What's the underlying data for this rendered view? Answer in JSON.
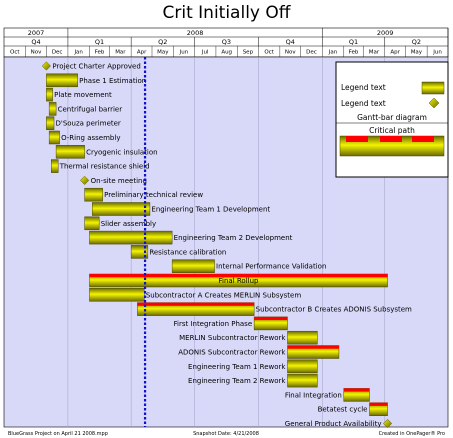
{
  "title": "Crit Initially Off",
  "chart_data": {
    "type": "gantt",
    "title": "Crit Initially Off",
    "timeline": {
      "start": "2007-10-01",
      "end": "2009-07-01",
      "years": [
        {
          "label": "2007",
          "start": "2007-10-01",
          "end": "2008-01-01"
        },
        {
          "label": "2008",
          "start": "2008-01-01",
          "end": "2009-01-01"
        },
        {
          "label": "2009",
          "start": "2009-01-01",
          "end": "2009-07-01"
        }
      ],
      "quarters": [
        {
          "label": "Q4",
          "start": "2007-10-01",
          "end": "2008-01-01"
        },
        {
          "label": "Q1",
          "start": "2008-01-01",
          "end": "2008-04-01"
        },
        {
          "label": "Q2",
          "start": "2008-04-01",
          "end": "2008-07-01"
        },
        {
          "label": "Q3",
          "start": "2008-07-01",
          "end": "2008-10-01"
        },
        {
          "label": "Q4",
          "start": "2008-10-01",
          "end": "2009-01-01"
        },
        {
          "label": "Q1",
          "start": "2009-01-01",
          "end": "2009-04-01"
        },
        {
          "label": "Q2",
          "start": "2009-04-01",
          "end": "2009-07-01"
        }
      ],
      "months": [
        "Oct",
        "Nov",
        "Dec",
        "Jan",
        "Feb",
        "Mar",
        "Apr",
        "May",
        "Jun",
        "Jul",
        "Aug",
        "Sep",
        "Oct",
        "Nov",
        "Dec",
        "Jan",
        "Feb",
        "Mar",
        "Apr",
        "May",
        "Jun"
      ],
      "snapshot_date": "2008-04-21"
    },
    "tasks": [
      {
        "name": "Project Charter Approved",
        "type": "milestone",
        "start": "2007-12-01",
        "label_side": "right"
      },
      {
        "name": "Phase 1 Estimation",
        "type": "bar",
        "start": "2007-12-01",
        "end": "2008-01-15",
        "critical": false,
        "label_side": "right"
      },
      {
        "name": "Plate movement",
        "type": "bar",
        "start": "2007-12-01",
        "end": "2007-12-10",
        "critical": false,
        "label_side": "right"
      },
      {
        "name": "Centrifugal barrier",
        "type": "bar",
        "start": "2007-12-05",
        "end": "2007-12-15",
        "critical": false,
        "label_side": "right"
      },
      {
        "name": "D'Souza perimeter",
        "type": "bar",
        "start": "2007-12-01",
        "end": "2007-12-12",
        "critical": false,
        "label_side": "right"
      },
      {
        "name": "O-Ring assembly",
        "type": "bar",
        "start": "2007-12-05",
        "end": "2007-12-20",
        "critical": false,
        "label_side": "right"
      },
      {
        "name": "Cryogenic insulation",
        "type": "bar",
        "start": "2007-12-15",
        "end": "2008-01-25",
        "critical": false,
        "label_side": "right"
      },
      {
        "name": "Thermal resistance shield",
        "type": "bar",
        "start": "2007-12-08",
        "end": "2007-12-18",
        "critical": false,
        "label_side": "right"
      },
      {
        "name": "On-site meeting",
        "type": "milestone",
        "start": "2008-01-25",
        "label_side": "right"
      },
      {
        "name": "Preliminary technical review",
        "type": "bar",
        "start": "2008-01-25",
        "end": "2008-02-20",
        "critical": false,
        "label_side": "right"
      },
      {
        "name": "Engineering Team 1 Development",
        "type": "bar",
        "start": "2008-02-05",
        "end": "2008-04-28",
        "critical": false,
        "label_side": "right"
      },
      {
        "name": "Slider assembly",
        "type": "bar",
        "start": "2008-01-25",
        "end": "2008-02-15",
        "critical": false,
        "label_side": "right"
      },
      {
        "name": "Engineering Team 2 Development",
        "type": "bar",
        "start": "2008-02-01",
        "end": "2008-05-30",
        "critical": false,
        "label_side": "right"
      },
      {
        "name": "Resistance calibration",
        "type": "bar",
        "start": "2008-04-01",
        "end": "2008-04-25",
        "critical": false,
        "label_side": "right"
      },
      {
        "name": "Internal Performance Validation",
        "type": "bar",
        "start": "2008-05-30",
        "end": "2008-07-30",
        "critical": false,
        "label_side": "right"
      },
      {
        "name": "Final Rollup",
        "type": "bar",
        "start": "2008-02-01",
        "end": "2009-04-05",
        "critical": true,
        "label_side": "inside"
      },
      {
        "name": "Subcontractor A Creates MERLIN Subsystem",
        "type": "bar",
        "start": "2008-02-01",
        "end": "2008-04-20",
        "critical": false,
        "label_side": "right"
      },
      {
        "name": "Subcontractor B Creates ADONIS Subsystem",
        "type": "bar",
        "start": "2008-04-10",
        "end": "2008-09-25",
        "critical": true,
        "label_side": "right"
      },
      {
        "name": "First Integration Phase",
        "type": "bar",
        "start": "2008-09-25",
        "end": "2008-11-12",
        "critical": true,
        "label_side": "left"
      },
      {
        "name": "MERLIN Subcontractor Rework",
        "type": "bar",
        "start": "2008-11-12",
        "end": "2008-12-25",
        "critical": false,
        "label_side": "left"
      },
      {
        "name": "ADONIS Subcontractor Rework",
        "type": "bar",
        "start": "2008-11-12",
        "end": "2009-01-25",
        "critical": true,
        "label_side": "left"
      },
      {
        "name": "Engineering Team 1 Rework",
        "type": "bar",
        "start": "2008-11-12",
        "end": "2008-12-25",
        "critical": false,
        "label_side": "left"
      },
      {
        "name": "Engineering Team 2 Rework",
        "type": "bar",
        "start": "2008-11-12",
        "end": "2008-12-25",
        "critical": false,
        "label_side": "left"
      },
      {
        "name": "Final Integration",
        "type": "bar",
        "start": "2009-02-01",
        "end": "2009-03-10",
        "critical": true,
        "label_side": "left"
      },
      {
        "name": "Betatest cycle",
        "type": "bar",
        "start": "2009-03-10",
        "end": "2009-04-05",
        "critical": true,
        "label_side": "left"
      },
      {
        "name": "General Product Availability",
        "type": "milestone",
        "start": "2009-04-05",
        "label_side": "left"
      }
    ],
    "legend": {
      "items": [
        {
          "label": "Legend text",
          "kind": "bar"
        },
        {
          "label": "Legend text",
          "kind": "milestone"
        },
        {
          "label": "Gantt-bar diagram",
          "kind": "caption"
        },
        {
          "label": "Critical path",
          "kind": "critical-sample"
        }
      ]
    },
    "colors": {
      "background": "#d8d8f8",
      "bar_fill": "#e8e800",
      "bar_dark": "#6a6a00",
      "critical": "#ff0000",
      "today_line": "#1010d0"
    }
  },
  "footer": {
    "left": "BlueGrass Project on April 21 2008.mpp",
    "center": "Snapshot Date: 4/21/2008",
    "right": "Created in OnePager® Pro"
  }
}
